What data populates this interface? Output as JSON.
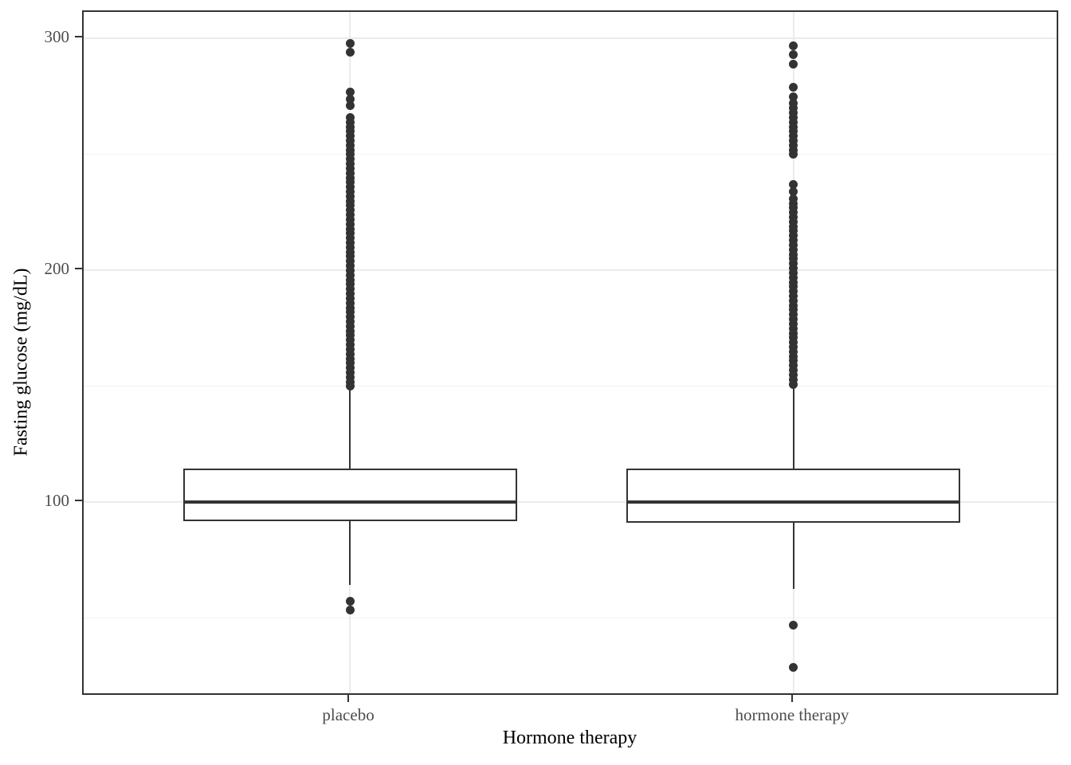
{
  "chart_data": {
    "type": "boxplot",
    "title": "",
    "xlabel": "Hormone therapy",
    "ylabel": "Fasting glucose (mg/dL)",
    "categories": [
      "placebo",
      "hormone therapy"
    ],
    "y_major_ticks": [
      100,
      200,
      300
    ],
    "y_minor_gridlines": [
      50,
      150,
      250
    ],
    "ylim": [
      16.3,
      311.5
    ],
    "legend_position": "none",
    "grid": "horizontal major+minor, vertical major at category centers",
    "series": [
      {
        "name": "placebo",
        "q1": 92,
        "median": 100,
        "q3": 114.5,
        "whisker_low": 64.5,
        "whisker_high": 149,
        "outliers_low": [
          57.5,
          53.5
        ],
        "outliers_high": [
          298,
          294,
          277,
          274,
          271,
          266,
          264,
          262,
          260,
          258,
          256,
          254,
          252,
          250,
          248,
          246,
          244,
          242,
          240,
          238,
          236,
          234,
          232,
          230,
          228,
          226,
          224,
          222,
          220,
          218,
          216,
          214,
          212,
          210,
          208,
          206,
          204,
          202,
          200,
          198,
          196,
          194,
          192,
          190,
          188,
          186,
          184,
          182,
          180,
          178,
          176,
          174,
          172,
          170,
          168,
          166,
          164,
          162,
          160,
          158,
          156,
          154,
          152,
          150
        ]
      },
      {
        "name": "hormone therapy",
        "q1": 91.2,
        "median": 100,
        "q3": 114.5,
        "whisker_low": 62.7,
        "whisker_high": 149,
        "outliers_low": [
          47,
          29
        ],
        "outliers_high": [
          297,
          293,
          289,
          279,
          275,
          272,
          270,
          268,
          266,
          264,
          262,
          260,
          258,
          256,
          254,
          252,
          250,
          237,
          234,
          231,
          229,
          227,
          225,
          223,
          221,
          219,
          217,
          215,
          213,
          211,
          209,
          207,
          205,
          203,
          201,
          199,
          197,
          195,
          193,
          191,
          189,
          187,
          185,
          183,
          181,
          179,
          177,
          175,
          173,
          171,
          169,
          167,
          165,
          163,
          161,
          159,
          157,
          155,
          153,
          151
        ]
      }
    ]
  },
  "colors": {
    "box_stroke": "#333333",
    "point": "#333333",
    "panel_border": "#333333",
    "grid_major": "#EBEBEB",
    "grid_minor": "#F2F2F2",
    "tick_label": "#4D4D4D",
    "axis_title": "#000000",
    "background": "#FFFFFF"
  }
}
